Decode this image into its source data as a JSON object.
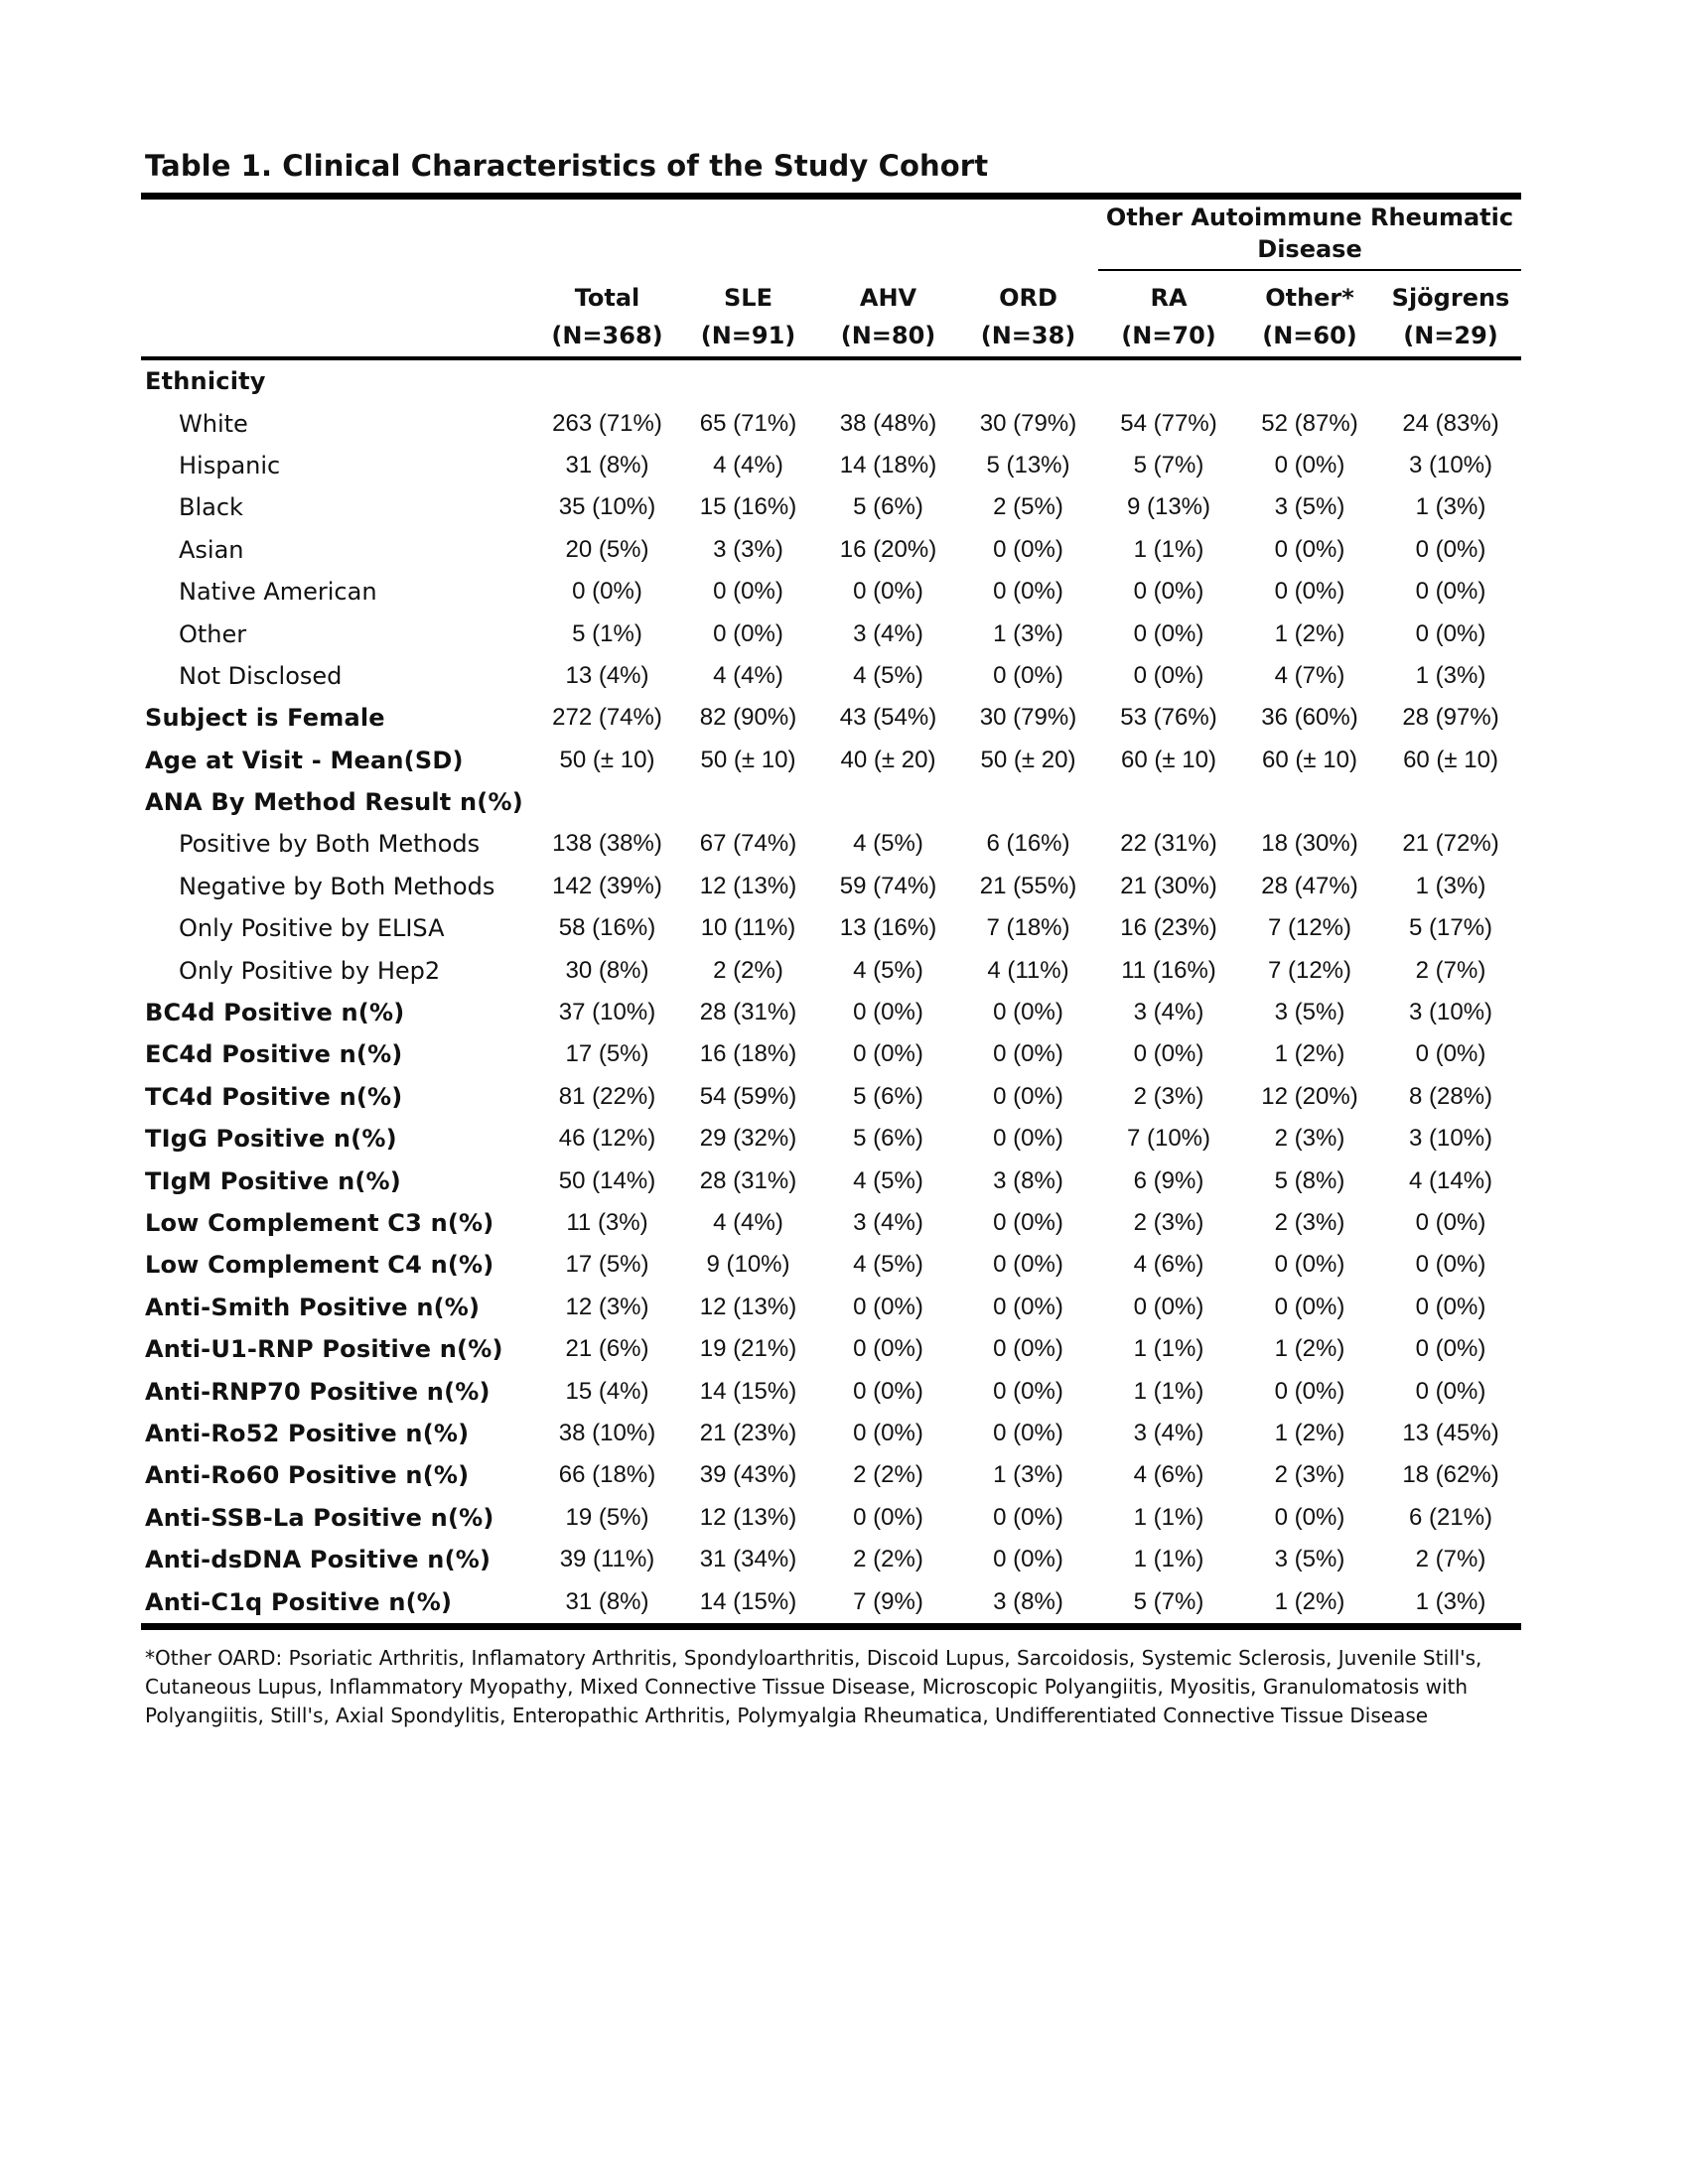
{
  "title": "Table 1. Clinical Characteristics of the Study Cohort",
  "group_header": "Other Autoimmune Rheumatic Disease",
  "columns": [
    {
      "name": "Total",
      "n": "(N=368)"
    },
    {
      "name": "SLE",
      "n": "(N=91)"
    },
    {
      "name": "AHV",
      "n": "(N=80)"
    },
    {
      "name": "ORD",
      "n": "(N=38)"
    },
    {
      "name": "RA",
      "n": "(N=70)"
    },
    {
      "name": "Other*",
      "n": "(N=60)"
    },
    {
      "name": "Sjögrens",
      "n": "(N=29)"
    }
  ],
  "rows": [
    {
      "label": "Ethnicity",
      "style": "bold",
      "values": [
        "",
        "",
        "",
        "",
        "",
        "",
        ""
      ]
    },
    {
      "label": "White",
      "style": "sub",
      "values": [
        "263 (71%)",
        "65 (71%)",
        "38 (48%)",
        "30 (79%)",
        "54 (77%)",
        "52 (87%)",
        "24 (83%)"
      ]
    },
    {
      "label": "Hispanic",
      "style": "sub",
      "values": [
        "31 (8%)",
        "4 (4%)",
        "14 (18%)",
        "5 (13%)",
        "5 (7%)",
        "0 (0%)",
        "3 (10%)"
      ]
    },
    {
      "label": "Black",
      "style": "sub",
      "values": [
        "35 (10%)",
        "15 (16%)",
        "5 (6%)",
        "2 (5%)",
        "9 (13%)",
        "3 (5%)",
        "1 (3%)"
      ]
    },
    {
      "label": "Asian",
      "style": "sub",
      "values": [
        "20 (5%)",
        "3 (3%)",
        "16 (20%)",
        "0 (0%)",
        "1 (1%)",
        "0 (0%)",
        "0 (0%)"
      ]
    },
    {
      "label": "Native American",
      "style": "sub",
      "values": [
        "0 (0%)",
        "0 (0%)",
        "0 (0%)",
        "0 (0%)",
        "0 (0%)",
        "0 (0%)",
        "0 (0%)"
      ]
    },
    {
      "label": "Other",
      "style": "sub",
      "values": [
        "5 (1%)",
        "0 (0%)",
        "3 (4%)",
        "1 (3%)",
        "0 (0%)",
        "1 (2%)",
        "0 (0%)"
      ]
    },
    {
      "label": "Not Disclosed",
      "style": "sub",
      "values": [
        "13 (4%)",
        "4 (4%)",
        "4 (5%)",
        "0 (0%)",
        "0 (0%)",
        "4 (7%)",
        "1 (3%)"
      ]
    },
    {
      "label": "Subject is Female",
      "style": "bold",
      "values": [
        "272 (74%)",
        "82 (90%)",
        "43 (54%)",
        "30 (79%)",
        "53 (76%)",
        "36 (60%)",
        "28 (97%)"
      ]
    },
    {
      "label": "Age at Visit - Mean(SD)",
      "style": "bold",
      "values": [
        "50 (± 10)",
        "50 (± 10)",
        "40 (± 20)",
        "50 (± 20)",
        "60 (± 10)",
        "60 (± 10)",
        "60 (± 10)"
      ]
    },
    {
      "label": "ANA By Method Result n(%)",
      "style": "bold",
      "values": [
        "",
        "",
        "",
        "",
        "",
        "",
        ""
      ]
    },
    {
      "label": "Positive by Both Methods",
      "style": "sub",
      "values": [
        "138 (38%)",
        "67 (74%)",
        "4 (5%)",
        "6 (16%)",
        "22 (31%)",
        "18 (30%)",
        "21 (72%)"
      ]
    },
    {
      "label": "Negative by Both Methods",
      "style": "sub",
      "values": [
        "142 (39%)",
        "12 (13%)",
        "59 (74%)",
        "21 (55%)",
        "21 (30%)",
        "28 (47%)",
        "1 (3%)"
      ]
    },
    {
      "label": "Only Positive by ELISA",
      "style": "sub",
      "values": [
        "58 (16%)",
        "10 (11%)",
        "13 (16%)",
        "7 (18%)",
        "16 (23%)",
        "7 (12%)",
        "5 (17%)"
      ]
    },
    {
      "label": "Only Positive by Hep2",
      "style": "sub",
      "values": [
        "30 (8%)",
        "2 (2%)",
        "4 (5%)",
        "4 (11%)",
        "11 (16%)",
        "7 (12%)",
        "2 (7%)"
      ]
    },
    {
      "label": "BC4d Positive n(%)",
      "style": "bold",
      "values": [
        "37 (10%)",
        "28 (31%)",
        "0 (0%)",
        "0 (0%)",
        "3 (4%)",
        "3 (5%)",
        "3 (10%)"
      ]
    },
    {
      "label": "EC4d Positive n(%)",
      "style": "bold",
      "values": [
        "17 (5%)",
        "16 (18%)",
        "0 (0%)",
        "0 (0%)",
        "0 (0%)",
        "1 (2%)",
        "0 (0%)"
      ]
    },
    {
      "label": "TC4d Positive n(%)",
      "style": "bold",
      "values": [
        "81 (22%)",
        "54 (59%)",
        "5 (6%)",
        "0 (0%)",
        "2 (3%)",
        "12 (20%)",
        "8 (28%)"
      ]
    },
    {
      "label": "TIgG Positive n(%)",
      "style": "bold",
      "values": [
        "46 (12%)",
        "29 (32%)",
        "5 (6%)",
        "0 (0%)",
        "7 (10%)",
        "2 (3%)",
        "3 (10%)"
      ]
    },
    {
      "label": "TIgM Positive n(%)",
      "style": "bold",
      "values": [
        "50 (14%)",
        "28 (31%)",
        "4 (5%)",
        "3 (8%)",
        "6 (9%)",
        "5 (8%)",
        "4 (14%)"
      ]
    },
    {
      "label": "Low Complement C3 n(%)",
      "style": "bold",
      "values": [
        "11 (3%)",
        "4 (4%)",
        "3 (4%)",
        "0 (0%)",
        "2 (3%)",
        "2 (3%)",
        "0 (0%)"
      ]
    },
    {
      "label": "Low Complement C4 n(%)",
      "style": "bold",
      "values": [
        "17 (5%)",
        "9 (10%)",
        "4 (5%)",
        "0 (0%)",
        "4 (6%)",
        "0 (0%)",
        "0 (0%)"
      ]
    },
    {
      "label": "Anti-Smith Positive n(%)",
      "style": "bold",
      "values": [
        "12 (3%)",
        "12 (13%)",
        "0 (0%)",
        "0 (0%)",
        "0 (0%)",
        "0 (0%)",
        "0 (0%)"
      ]
    },
    {
      "label": "Anti-U1-RNP Positive n(%)",
      "style": "bold",
      "values": [
        "21 (6%)",
        "19 (21%)",
        "0 (0%)",
        "0 (0%)",
        "1 (1%)",
        "1 (2%)",
        "0 (0%)"
      ]
    },
    {
      "label": "Anti-RNP70 Positive n(%)",
      "style": "bold",
      "values": [
        "15 (4%)",
        "14 (15%)",
        "0 (0%)",
        "0 (0%)",
        "1 (1%)",
        "0 (0%)",
        "0 (0%)"
      ]
    },
    {
      "label": "Anti-Ro52 Positive n(%)",
      "style": "bold",
      "values": [
        "38 (10%)",
        "21 (23%)",
        "0 (0%)",
        "0 (0%)",
        "3 (4%)",
        "1 (2%)",
        "13 (45%)"
      ]
    },
    {
      "label": "Anti-Ro60 Positive n(%)",
      "style": "bold",
      "values": [
        "66 (18%)",
        "39 (43%)",
        "2 (2%)",
        "1 (3%)",
        "4 (6%)",
        "2 (3%)",
        "18 (62%)"
      ]
    },
    {
      "label": "Anti-SSB-La Positive n(%)",
      "style": "bold",
      "values": [
        "19 (5%)",
        "12 (13%)",
        "0 (0%)",
        "0 (0%)",
        "1 (1%)",
        "0 (0%)",
        "6 (21%)"
      ]
    },
    {
      "label": "Anti-dsDNA Positive n(%)",
      "style": "bold",
      "values": [
        "39 (11%)",
        "31 (34%)",
        "2 (2%)",
        "0 (0%)",
        "1 (1%)",
        "3 (5%)",
        "2 (7%)"
      ]
    },
    {
      "label": "Anti-C1q Positive n(%)",
      "style": "bold",
      "values": [
        "31 (8%)",
        "14 (15%)",
        "7 (9%)",
        "3 (8%)",
        "5 (7%)",
        "1 (2%)",
        "1 (3%)"
      ]
    }
  ],
  "footnote": "*Other OARD: Psoriatic Arthritis, Inflamatory Arthritis, Spondyloarthritis, Discoid Lupus, Sarcoidosis, Systemic Sclerosis, Juvenile Still's, Cutaneous Lupus, Inflammatory Myopathy, Mixed Connective Tissue Disease, Microscopic Polyangiitis, Myositis, Granulomatosis with Polyangiitis, Still's, Axial Spondylitis, Enteropathic Arthritis, Polymyalgia Rheumatica, Undifferentiated Connective Tissue Disease"
}
